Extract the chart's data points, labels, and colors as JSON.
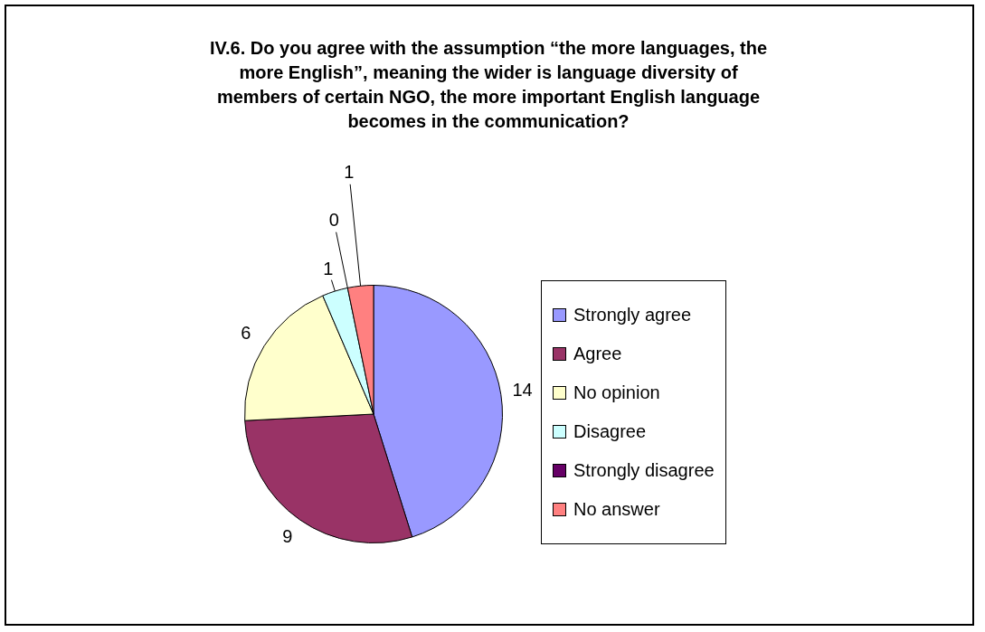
{
  "chart_data": {
    "type": "pie",
    "title": "IV.6. Do you agree with the assumption “the more languages, the more English”, meaning the wider is language diversity of members of certain NGO, the more important English language becomes in the communication?",
    "categories": [
      "Strongly agree",
      "Agree",
      "No opinion",
      "Disagree",
      "Strongly disagree",
      "No answer"
    ],
    "values": [
      14,
      9,
      6,
      1,
      0,
      1
    ],
    "colors": [
      "#9999ff",
      "#993366",
      "#ffffcc",
      "#ccffff",
      "#660066",
      "#ff8080"
    ],
    "value_labels": [
      "14",
      "9",
      "6",
      "1",
      "0",
      "1"
    ],
    "legend": "right"
  }
}
